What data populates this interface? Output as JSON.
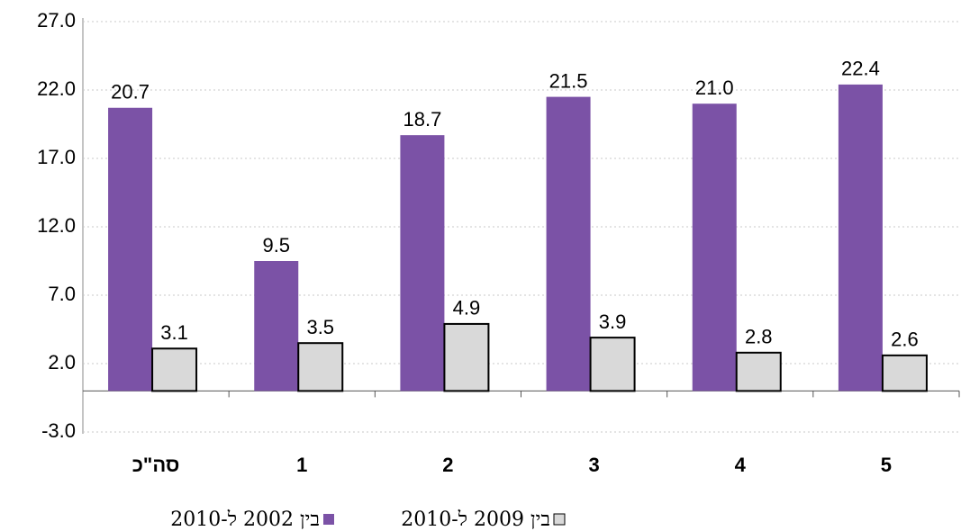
{
  "chart_data": {
    "type": "bar",
    "categories": [
      "סה\"כ",
      "1",
      "2",
      "3",
      "4",
      "5"
    ],
    "series": [
      {
        "name": "בין 2002 ל-2010",
        "color": "#7b52a6",
        "values": [
          20.7,
          9.5,
          18.7,
          21.5,
          21.0,
          22.4
        ],
        "value_labels": [
          "20.7",
          "9.5",
          "18.7",
          "21.5",
          "21.0",
          "22.4"
        ]
      },
      {
        "name": "בין 2009 ל-2010",
        "color": "#d9d9d9",
        "values": [
          3.1,
          3.5,
          4.9,
          3.9,
          2.8,
          2.6
        ],
        "value_labels": [
          "3.1",
          "3.5",
          "4.9",
          "3.9",
          "2.8",
          "2.6"
        ]
      }
    ],
    "ylim": [
      -3,
      27
    ],
    "yticks": [
      {
        "value": -3,
        "label": "-3.0"
      },
      {
        "value": 2,
        "label": "2.0"
      },
      {
        "value": 7,
        "label": "7.0"
      },
      {
        "value": 12,
        "label": "12.0"
      },
      {
        "value": 17,
        "label": "17.0"
      },
      {
        "value": 22,
        "label": "22.0"
      },
      {
        "value": 27,
        "label": "27.0"
      }
    ],
    "grid": true
  }
}
